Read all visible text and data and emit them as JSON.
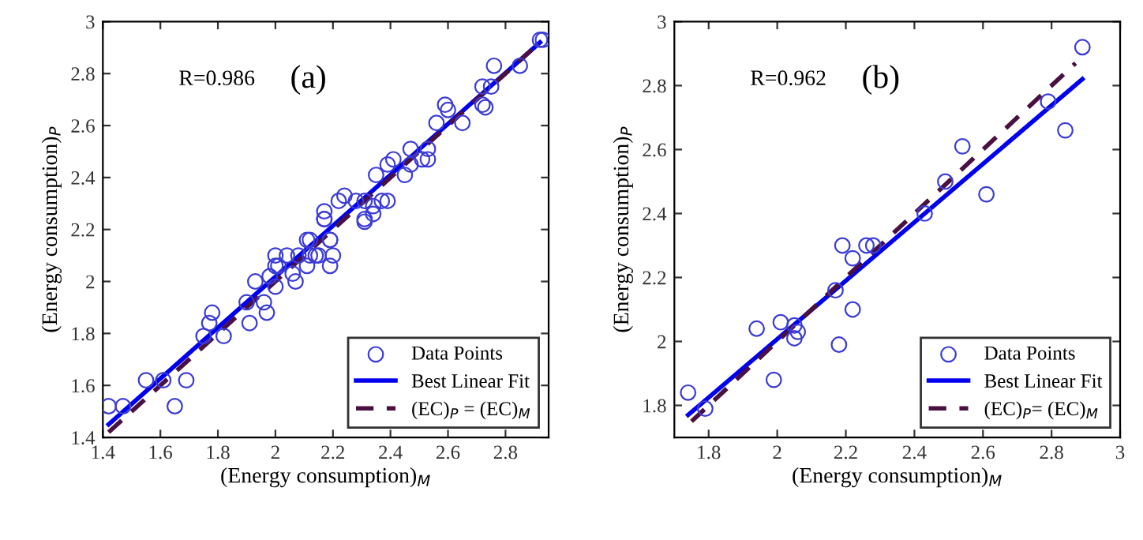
{
  "chart_data": [
    {
      "type": "scatter",
      "xlabel": "(Energy consumption)$_{M}$",
      "ylabel": "(Energy consumption)$_{P}$",
      "annotations": [
        "R=0.986",
        "(a)"
      ],
      "xlim": [
        1.4,
        2.95
      ],
      "ylim": [
        1.4,
        3
      ],
      "xticks": [
        1.4,
        1.6,
        1.8,
        2,
        2.2,
        2.4,
        2.6,
        2.8
      ],
      "yticks": [
        1.4,
        1.6,
        1.8,
        2,
        2.2,
        2.4,
        2.6,
        2.8,
        3
      ],
      "grid": false,
      "legend": "bottom right",
      "series": [
        {
          "name": "Data Points",
          "marker": "circle",
          "color": "#3b3bd6",
          "x": [
            1.42,
            1.47,
            1.55,
            1.61,
            1.65,
            1.69,
            1.75,
            1.77,
            1.78,
            1.82,
            1.9,
            1.91,
            1.93,
            1.96,
            1.97,
            1.98,
            2.0,
            2.0,
            2.0,
            2.01,
            2.04,
            2.06,
            2.07,
            2.08,
            2.11,
            2.11,
            2.12,
            2.14,
            2.15,
            2.19,
            2.19,
            2.2,
            2.17,
            2.31,
            2.93,
            2.92,
            2.76,
            2.85,
            2.72,
            2.75,
            2.72,
            2.73,
            2.59,
            2.6,
            2.56,
            2.65,
            2.47,
            2.53,
            2.53,
            2.51,
            2.41,
            2.39,
            2.47,
            2.45,
            2.35,
            2.24,
            2.22,
            2.28,
            2.31,
            2.37,
            2.39,
            2.34,
            2.17,
            2.17,
            2.31,
            2.34,
            2.12,
            2.19
          ],
          "values": [
            1.52,
            1.52,
            1.62,
            1.62,
            1.52,
            1.62,
            1.79,
            1.84,
            1.88,
            1.79,
            1.92,
            1.84,
            2.0,
            1.92,
            1.88,
            2.02,
            1.98,
            2.1,
            2.06,
            2.06,
            2.1,
            2.03,
            2.0,
            2.1,
            2.16,
            2.06,
            2.1,
            2.1,
            2.1,
            2.06,
            2.16,
            2.1,
            2.24,
            2.23,
            2.93,
            2.93,
            2.83,
            2.83,
            2.75,
            2.75,
            2.68,
            2.67,
            2.68,
            2.66,
            2.61,
            2.61,
            2.51,
            2.51,
            2.47,
            2.47,
            2.47,
            2.45,
            2.45,
            2.41,
            2.41,
            2.33,
            2.31,
            2.31,
            2.31,
            2.31,
            2.31,
            2.29,
            2.27,
            2.24,
            2.24,
            2.26,
            2.16,
            2.16
          ]
        },
        {
          "name": "Best Linear Fit",
          "type": "line",
          "line_style": "solid",
          "color": "#0000ee",
          "x": [
            1.42,
            2.92
          ],
          "values": [
            1.45,
            2.92
          ]
        },
        {
          "name": "(EC)$_{P}$ = (EC)$_{M}$",
          "type": "line",
          "line_style": "dashed",
          "color": "#4a1040",
          "x": [
            1.42,
            2.92
          ],
          "values": [
            1.42,
            2.92
          ]
        }
      ]
    },
    {
      "type": "scatter",
      "xlabel": "(Energy consumption)$_{M}$",
      "ylabel": "(Energy consumption)$_{P}$",
      "annotations": [
        "R=0.962",
        "(b)"
      ],
      "xlim": [
        1.7,
        3
      ],
      "ylim": [
        1.7,
        3
      ],
      "xticks": [
        1.8,
        2,
        2.2,
        2.4,
        2.6,
        2.8,
        3
      ],
      "yticks": [
        1.8,
        2,
        2.2,
        2.4,
        2.6,
        2.8,
        3
      ],
      "grid": false,
      "legend": "bottom right",
      "series": [
        {
          "name": "Data Points",
          "marker": "circle",
          "color": "#3b3bd6",
          "x": [
            1.74,
            1.79,
            1.94,
            2.01,
            1.99,
            2.05,
            2.05,
            2.06,
            2.18,
            2.17,
            2.19,
            2.22,
            2.22,
            2.26,
            2.28,
            2.43,
            2.49,
            2.54,
            2.61,
            2.79,
            2.84,
            2.89
          ],
          "values": [
            1.84,
            1.79,
            2.04,
            2.06,
            1.88,
            2.05,
            2.01,
            2.03,
            1.99,
            2.16,
            2.3,
            2.26,
            2.1,
            2.3,
            2.3,
            2.4,
            2.5,
            2.61,
            2.46,
            2.75,
            2.66,
            2.92
          ]
        },
        {
          "name": "Best Linear Fit",
          "type": "line",
          "line_style": "solid",
          "color": "#0000ee",
          "x": [
            1.74,
            2.89
          ],
          "values": [
            1.77,
            2.82
          ]
        },
        {
          "name": "(EC)$_{P}$= (EC)$_{M}$",
          "type": "line",
          "line_style": "dashed",
          "color": "#4a1040",
          "x": [
            1.75,
            2.87
          ],
          "values": [
            1.75,
            2.87
          ]
        }
      ]
    }
  ]
}
